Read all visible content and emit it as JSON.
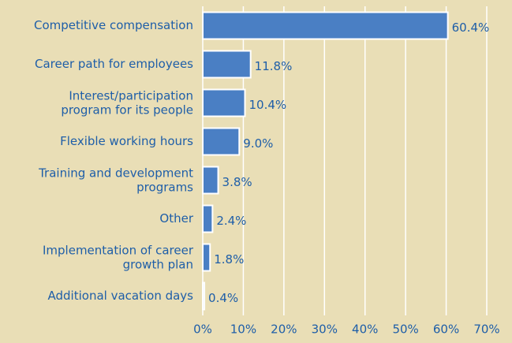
{
  "chart_data": {
    "type": "hbar",
    "categories": [
      "Competitive compensation",
      "Career path for employees",
      "Interest/participation\nprogram for its people",
      "Flexible working hours",
      "Training and development\nprograms",
      "Other",
      "Implementation of career\ngrowth plan",
      "Additional vacation days"
    ],
    "values": [
      60.4,
      11.8,
      10.4,
      9.0,
      3.8,
      2.4,
      1.8,
      0.4
    ],
    "value_labels": [
      "60.4%",
      "11.8%",
      "10.4%",
      "9.0%",
      "3.8%",
      "2.4%",
      "1.8%",
      "0.4%"
    ],
    "color": "#4a7fc4",
    "xlim": [
      0,
      70
    ],
    "xticks": [
      {
        "value": 0,
        "label": "0%"
      },
      {
        "value": 10,
        "label": "10%"
      },
      {
        "value": 20,
        "label": "20%"
      },
      {
        "value": 30,
        "label": "30%"
      },
      {
        "value": 40,
        "label": "40%"
      },
      {
        "value": 50,
        "label": "50%"
      },
      {
        "value": 60,
        "label": "60%"
      },
      {
        "value": 70,
        "label": "70%"
      }
    ],
    "grid": true
  }
}
